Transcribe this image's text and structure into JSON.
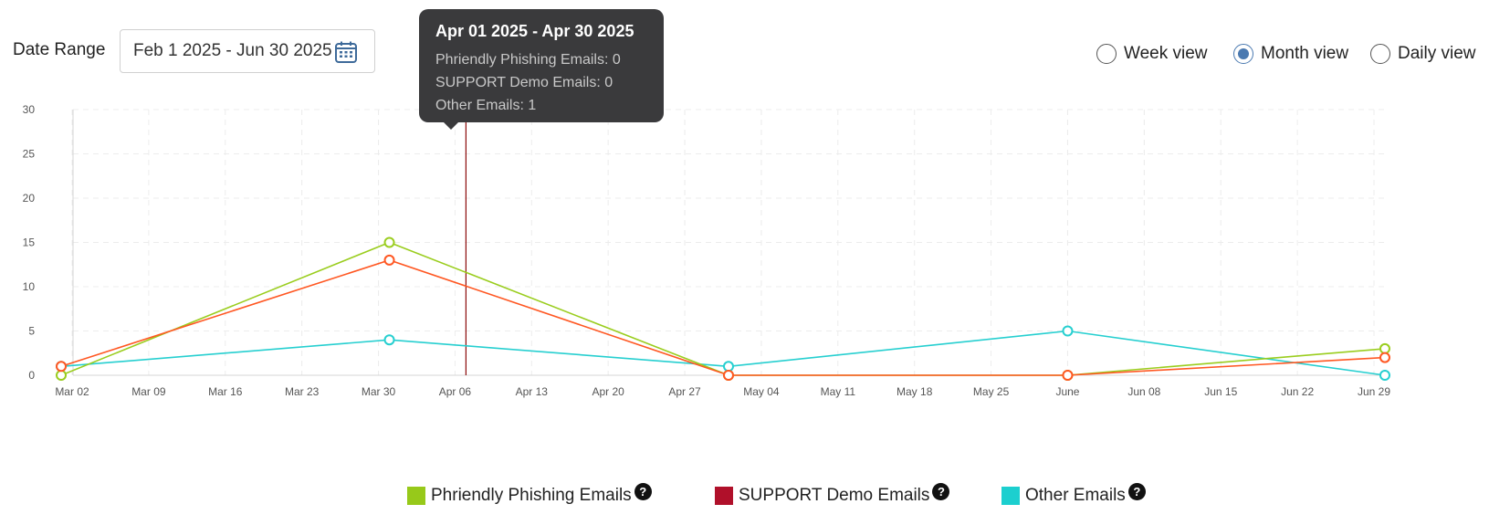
{
  "date_range": {
    "label": "Date Range",
    "value": "Feb 1 2025 - Jun 30 2025",
    "icon": "calendar-icon"
  },
  "views": [
    {
      "label": "Week view",
      "selected": false
    },
    {
      "label": "Month view",
      "selected": true
    },
    {
      "label": "Daily view",
      "selected": false
    }
  ],
  "tooltip": {
    "title": "Apr 01 2025 - Apr 30 2025",
    "rows": [
      "Phriendly Phishing Emails: 0",
      "SUPPORT Demo Emails: 0",
      "Other Emails: 1"
    ]
  },
  "legend": {
    "help_icon": "question-circle-icon",
    "help_glyph": "?"
  },
  "chart_data": {
    "type": "line",
    "x": [
      "Mar 01",
      "Mar 31",
      "May 01",
      "Jun 01",
      "Jun 30"
    ],
    "x_ticks": [
      "Mar 02",
      "Mar 09",
      "Mar 16",
      "Mar 23",
      "Mar 30",
      "Apr 06",
      "Apr 13",
      "Apr 20",
      "Apr 27",
      "May 04",
      "May 11",
      "May 18",
      "May 25",
      "June",
      "Jun 08",
      "Jun 15",
      "Jun 22",
      "Jun 29"
    ],
    "y_ticks": [
      0,
      5,
      10,
      15,
      20,
      25,
      30
    ],
    "ylim": [
      0,
      30
    ],
    "grid": true,
    "legend_position": "bottom",
    "hover_marker_x": "Apr 07",
    "series": [
      {
        "name": "Phriendly Phishing Emails",
        "color": "#9acd1e",
        "legend_color": "#97c91a",
        "values": [
          0,
          15,
          0,
          0,
          3
        ]
      },
      {
        "name": "SUPPORT Demo Emails",
        "color": "#ff5722",
        "legend_color": "#b0102a",
        "values": [
          1,
          13,
          0,
          0,
          2
        ]
      },
      {
        "name": "Other Emails",
        "color": "#26cfd0",
        "legend_color": "#1ccfcf",
        "values": [
          1,
          4,
          1,
          5,
          0
        ]
      }
    ]
  }
}
